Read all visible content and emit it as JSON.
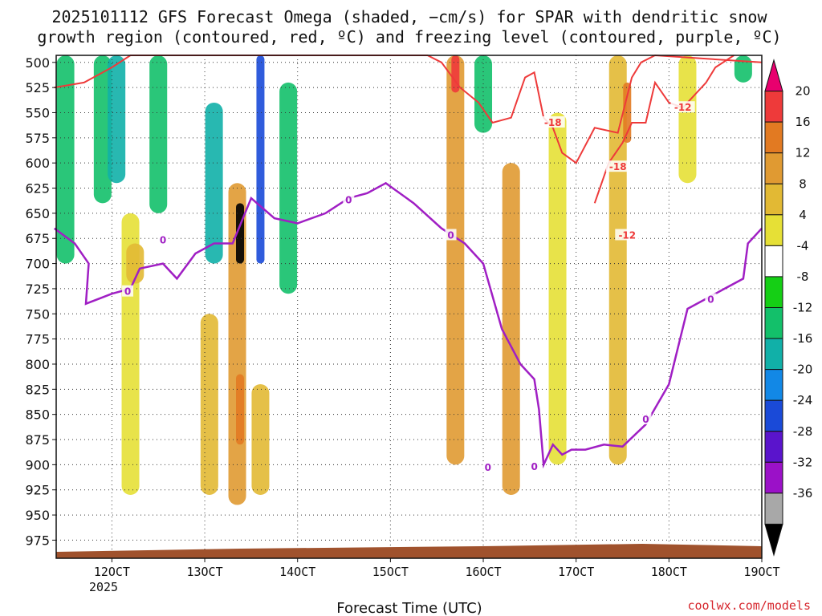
{
  "chart_data": {
    "type": "time-height cross section",
    "title_line1": "2025101112 GFS Forecast Omega (shaded, −cm/s) for SPAR with dendritic snow",
    "title_line2": "growth region (contoured, red, ºC) and freezing level (contoured, purple, ºC)",
    "xlabel": "Forecast Time (UTC)",
    "credit": "coolwx.com/models",
    "x_ticks": [
      "12OCT",
      "13OCT",
      "14OCT",
      "15OCT",
      "16OCT",
      "17OCT",
      "18OCT",
      "19OCT"
    ],
    "x_tick_sub": "2025",
    "x_range_days": [
      11.4,
      19.0
    ],
    "y_ticks": [
      500,
      525,
      550,
      575,
      600,
      625,
      650,
      675,
      700,
      725,
      750,
      775,
      800,
      825,
      850,
      875,
      900,
      925,
      950,
      975
    ],
    "y_range_hpa": [
      493,
      993
    ],
    "colorbar": {
      "levels": [
        20,
        16,
        12,
        8,
        4,
        -4,
        -8,
        -12,
        -16,
        -20,
        -24,
        -28,
        -32,
        -36
      ],
      "colors": [
        "#e8006e",
        "#ee3a3a",
        "#e27a22",
        "#e09a32",
        "#e2b934",
        "#e6e036",
        "#ffffff",
        "#15cf15",
        "#13c06a",
        "#11b0a8",
        "#1288e6",
        "#1a4ad8",
        "#5a14cc",
        "#9b11c8",
        "#a8a8a8",
        "#000000"
      ]
    },
    "omega_features": [
      {
        "day": 11.5,
        "p_top": 493,
        "p_bot": 700,
        "value": -8
      },
      {
        "day": 11.9,
        "p_top": 493,
        "p_bot": 640,
        "value": -10
      },
      {
        "day": 12.05,
        "p_top": 493,
        "p_bot": 620,
        "value": -12
      },
      {
        "day": 12.2,
        "p_top": 650,
        "p_bot": 930,
        "value": 6
      },
      {
        "day": 12.25,
        "p_top": 680,
        "p_bot": 720,
        "value": 10
      },
      {
        "day": 12.5,
        "p_top": 493,
        "p_bot": 650,
        "value": -8
      },
      {
        "day": 13.05,
        "p_top": 750,
        "p_bot": 930,
        "value": 8
      },
      {
        "day": 13.1,
        "p_top": 540,
        "p_bot": 700,
        "value": -14
      },
      {
        "day": 13.35,
        "p_top": 620,
        "p_bot": 940,
        "value": 12
      },
      {
        "day": 13.38,
        "p_top": 810,
        "p_bot": 880,
        "value": 18
      },
      {
        "day": 13.38,
        "p_top": 640,
        "p_bot": 700,
        "value": -36
      },
      {
        "day": 13.6,
        "p_top": 493,
        "p_bot": 700,
        "value": -20
      },
      {
        "day": 13.6,
        "p_top": 820,
        "p_bot": 930,
        "value": 8
      },
      {
        "day": 13.9,
        "p_top": 520,
        "p_bot": 730,
        "value": -8
      },
      {
        "day": 15.7,
        "p_top": 493,
        "p_bot": 900,
        "value": 12
      },
      {
        "day": 15.7,
        "p_top": 493,
        "p_bot": 530,
        "value": 20
      },
      {
        "day": 16.3,
        "p_top": 600,
        "p_bot": 930,
        "value": 12
      },
      {
        "day": 16.0,
        "p_top": 493,
        "p_bot": 570,
        "value": -8
      },
      {
        "day": 16.8,
        "p_top": 550,
        "p_bot": 900,
        "value": 6
      },
      {
        "day": 17.45,
        "p_top": 493,
        "p_bot": 900,
        "value": 10
      },
      {
        "day": 17.55,
        "p_top": 520,
        "p_bot": 580,
        "value": 18
      },
      {
        "day": 18.2,
        "p_top": 493,
        "p_bot": 620,
        "value": 6
      },
      {
        "day": 18.8,
        "p_top": 493,
        "p_bot": 520,
        "value": -8
      }
    ],
    "freezing_level_0C": [
      [
        11.38,
        665
      ],
      [
        11.6,
        680
      ],
      [
        11.75,
        700
      ],
      [
        11.72,
        740
      ],
      [
        12.0,
        730
      ],
      [
        12.2,
        725
      ],
      [
        12.3,
        705
      ],
      [
        12.55,
        700
      ],
      [
        12.7,
        715
      ],
      [
        12.9,
        690
      ],
      [
        13.1,
        680
      ],
      [
        13.3,
        680
      ],
      [
        13.5,
        635
      ],
      [
        13.75,
        655
      ],
      [
        14.0,
        660
      ],
      [
        14.3,
        650
      ],
      [
        14.55,
        635
      ],
      [
        14.75,
        630
      ],
      [
        14.95,
        620
      ],
      [
        15.25,
        640
      ],
      [
        15.55,
        665
      ],
      [
        15.8,
        680
      ],
      [
        16.0,
        700
      ],
      [
        16.2,
        765
      ],
      [
        16.4,
        800
      ],
      [
        16.55,
        815
      ],
      [
        16.6,
        845
      ],
      [
        16.65,
        900
      ],
      [
        16.75,
        880
      ],
      [
        16.85,
        890
      ],
      [
        16.95,
        885
      ],
      [
        17.1,
        885
      ],
      [
        17.3,
        880
      ],
      [
        17.5,
        882
      ],
      [
        17.75,
        860
      ],
      [
        18.0,
        820
      ],
      [
        18.2,
        745
      ],
      [
        18.4,
        735
      ],
      [
        18.6,
        725
      ],
      [
        18.8,
        715
      ],
      [
        18.85,
        680
      ],
      [
        19.0,
        665
      ]
    ],
    "isotherm_minus12": [
      [
        11.38,
        525
      ],
      [
        11.7,
        520
      ],
      [
        12.0,
        505
      ],
      [
        12.2,
        493
      ],
      [
        15.4,
        493
      ],
      [
        15.55,
        500
      ],
      [
        15.75,
        525
      ],
      [
        15.95,
        540
      ],
      [
        16.1,
        560
      ],
      [
        16.3,
        555
      ],
      [
        16.45,
        515
      ],
      [
        16.55,
        510
      ],
      [
        16.65,
        555
      ],
      [
        16.75,
        565
      ],
      [
        16.85,
        590
      ],
      [
        17.0,
        600
      ],
      [
        17.2,
        565
      ],
      [
        17.45,
        570
      ],
      [
        17.6,
        515
      ],
      [
        17.7,
        500
      ],
      [
        17.85,
        493
      ],
      [
        19.0,
        500
      ]
    ],
    "isotherm_minus18": [
      [
        17.2,
        640
      ],
      [
        17.35,
        600
      ],
      [
        17.5,
        580
      ],
      [
        17.6,
        560
      ],
      [
        17.75,
        560
      ],
      [
        17.85,
        520
      ],
      [
        18.0,
        540
      ],
      [
        18.15,
        545
      ],
      [
        18.4,
        520
      ],
      [
        18.5,
        505
      ],
      [
        18.7,
        493
      ]
    ],
    "contour_labels": [
      {
        "text": "0",
        "color": "#a01fc4",
        "day": 12.17,
        "p": 728
      },
      {
        "text": "0",
        "color": "#a01fc4",
        "day": 12.55,
        "p": 677
      },
      {
        "text": "0",
        "color": "#a01fc4",
        "day": 14.55,
        "p": 637
      },
      {
        "text": "0",
        "color": "#a01fc4",
        "day": 15.65,
        "p": 672
      },
      {
        "text": "0",
        "color": "#a01fc4",
        "day": 16.05,
        "p": 903
      },
      {
        "text": "0",
        "color": "#a01fc4",
        "day": 16.55,
        "p": 902
      },
      {
        "text": "0",
        "color": "#a01fc4",
        "day": 17.75,
        "p": 855
      },
      {
        "text": "0",
        "color": "#a01fc4",
        "day": 18.45,
        "p": 736
      },
      {
        "text": "-18",
        "color": "#ee3a3a",
        "day": 16.75,
        "p": 560
      },
      {
        "text": "-18",
        "color": "#ee3a3a",
        "day": 17.45,
        "p": 604
      },
      {
        "text": "-12",
        "color": "#ee3a3a",
        "day": 18.15,
        "p": 545
      },
      {
        "text": "-12",
        "color": "#ee3a3a",
        "day": 17.55,
        "p": 672
      }
    ]
  }
}
